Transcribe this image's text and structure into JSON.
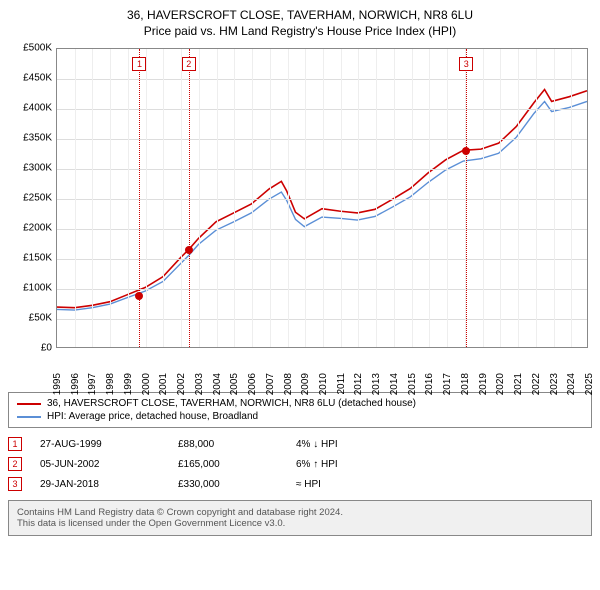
{
  "title": {
    "line1": "36, HAVERSCROFT CLOSE, TAVERHAM, NORWICH, NR8 6LU",
    "line2": "Price paid vs. HM Land Registry's House Price Index (HPI)"
  },
  "chart": {
    "type": "line",
    "background_color": "#ffffff",
    "grid_color": "#dddddd",
    "vgrid_color": "#eeeeee",
    "border_color": "#888888",
    "y": {
      "min": 0,
      "max": 500000,
      "step": 50000,
      "ticks": [
        "£0",
        "£50K",
        "£100K",
        "£150K",
        "£200K",
        "£250K",
        "£300K",
        "£350K",
        "£400K",
        "£450K",
        "£500K"
      ],
      "label_fontsize": 10
    },
    "x": {
      "min": 1995,
      "max": 2025,
      "ticks": [
        1995,
        1996,
        1997,
        1998,
        1999,
        2000,
        2001,
        2002,
        2003,
        2004,
        2005,
        2006,
        2007,
        2008,
        2009,
        2010,
        2011,
        2012,
        2013,
        2014,
        2015,
        2016,
        2017,
        2018,
        2019,
        2020,
        2021,
        2022,
        2023,
        2024,
        2025
      ],
      "label_fontsize": 10
    },
    "series": [
      {
        "name": "36, HAVERSCROFT CLOSE, TAVERHAM, NORWICH, NR8 6LU (detached house)",
        "color": "#cc0000",
        "line_width": 1.6,
        "points": [
          [
            1995,
            67000
          ],
          [
            1996,
            66000
          ],
          [
            1997,
            70000
          ],
          [
            1998,
            76000
          ],
          [
            1999,
            88000
          ],
          [
            2000,
            100000
          ],
          [
            2001,
            118000
          ],
          [
            2002,
            150000
          ],
          [
            2002.5,
            165000
          ],
          [
            2003,
            182000
          ],
          [
            2004,
            210000
          ],
          [
            2005,
            225000
          ],
          [
            2006,
            240000
          ],
          [
            2007,
            265000
          ],
          [
            2007.7,
            278000
          ],
          [
            2008,
            262000
          ],
          [
            2008.5,
            226000
          ],
          [
            2009,
            215000
          ],
          [
            2010,
            232000
          ],
          [
            2011,
            228000
          ],
          [
            2012,
            225000
          ],
          [
            2013,
            231000
          ],
          [
            2014,
            248000
          ],
          [
            2015,
            266000
          ],
          [
            2016,
            292000
          ],
          [
            2017,
            314000
          ],
          [
            2018,
            330000
          ],
          [
            2019,
            332000
          ],
          [
            2020,
            342000
          ],
          [
            2021,
            370000
          ],
          [
            2022,
            410000
          ],
          [
            2022.6,
            432000
          ],
          [
            2023,
            412000
          ],
          [
            2024,
            420000
          ],
          [
            2025,
            430000
          ]
        ]
      },
      {
        "name": "HPI: Average price, detached house, Broadland",
        "color": "#5b8fd6",
        "line_width": 1.4,
        "points": [
          [
            1995,
            63000
          ],
          [
            1996,
            62000
          ],
          [
            1997,
            66000
          ],
          [
            1998,
            72000
          ],
          [
            1999,
            83000
          ],
          [
            2000,
            94000
          ],
          [
            2001,
            110000
          ],
          [
            2002,
            140000
          ],
          [
            2002.5,
            155000
          ],
          [
            2003,
            172000
          ],
          [
            2004,
            196000
          ],
          [
            2005,
            210000
          ],
          [
            2006,
            225000
          ],
          [
            2007,
            248000
          ],
          [
            2007.7,
            260000
          ],
          [
            2008,
            246000
          ],
          [
            2008.5,
            214000
          ],
          [
            2009,
            202000
          ],
          [
            2010,
            218000
          ],
          [
            2011,
            216000
          ],
          [
            2012,
            213000
          ],
          [
            2013,
            219000
          ],
          [
            2014,
            235000
          ],
          [
            2015,
            252000
          ],
          [
            2016,
            276000
          ],
          [
            2017,
            297000
          ],
          [
            2018,
            312000
          ],
          [
            2019,
            316000
          ],
          [
            2020,
            325000
          ],
          [
            2021,
            352000
          ],
          [
            2022,
            392000
          ],
          [
            2022.6,
            412000
          ],
          [
            2023,
            395000
          ],
          [
            2024,
            402000
          ],
          [
            2025,
            412000
          ]
        ]
      }
    ],
    "markers": [
      {
        "num": "1",
        "year": 1999.65,
        "value": 88000,
        "color": "#cc0000",
        "date": "27-AUG-1999",
        "price": "£88,000",
        "diff": "4% ↓ HPI"
      },
      {
        "num": "2",
        "year": 2002.43,
        "value": 165000,
        "color": "#cc0000",
        "date": "05-JUN-2002",
        "price": "£165,000",
        "diff": "6% ↑ HPI"
      },
      {
        "num": "3",
        "year": 2018.08,
        "value": 330000,
        "color": "#cc0000",
        "date": "29-JAN-2018",
        "price": "£330,000",
        "diff": "≈ HPI"
      }
    ]
  },
  "legend": {
    "items": [
      {
        "label": "36, HAVERSCROFT CLOSE, TAVERHAM, NORWICH, NR8 6LU (detached house)",
        "color": "#cc0000"
      },
      {
        "label": "HPI: Average price, detached house, Broadland",
        "color": "#5b8fd6"
      }
    ]
  },
  "footer": {
    "line1": "Contains HM Land Registry data © Crown copyright and database right 2024.",
    "line2": "This data is licensed under the Open Government Licence v3.0."
  }
}
